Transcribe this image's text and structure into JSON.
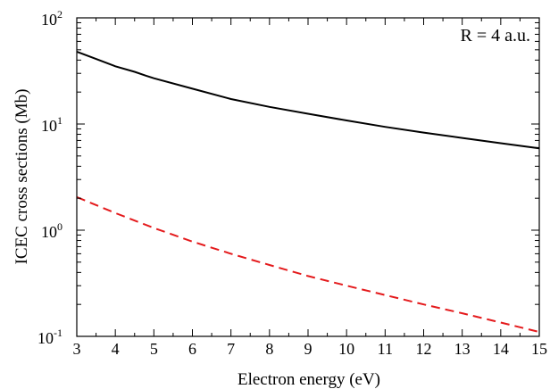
{
  "chart_data": {
    "type": "line",
    "xlabel": "Electron energy (eV)",
    "ylabel": "ICEC cross sections (Mb)",
    "xlim": [
      3,
      15
    ],
    "ylim": [
      0.1,
      100
    ],
    "yscale": "log",
    "grid": false,
    "x_ticks": [
      "3",
      "4",
      "5",
      "6",
      "7",
      "8",
      "9",
      "10",
      "11",
      "12",
      "13",
      "14",
      "15"
    ],
    "y_ticks": [
      {
        "base": "10",
        "exp": "-1"
      },
      {
        "base": "10",
        "exp": "0"
      },
      {
        "base": "10",
        "exp": "1"
      },
      {
        "base": "10",
        "exp": "2"
      }
    ],
    "annotation": "R = 4 a.u.",
    "series": [
      {
        "style": "solid",
        "color": "#000000",
        "x": [
          3,
          3.5,
          4,
          4.5,
          4.8,
          5,
          6,
          7,
          8,
          9,
          10,
          11,
          12,
          13,
          14,
          15
        ],
        "y": [
          48,
          41,
          35,
          31,
          28.5,
          27,
          21.5,
          17.2,
          14.5,
          12.5,
          10.8,
          9.4,
          8.3,
          7.4,
          6.6,
          5.9
        ]
      },
      {
        "style": "dashed",
        "color": "#e41a1c",
        "x": [
          3,
          4,
          5,
          6,
          7,
          8,
          9,
          10,
          11,
          12,
          13,
          14,
          15
        ],
        "y": [
          2.05,
          1.45,
          1.05,
          0.78,
          0.6,
          0.47,
          0.37,
          0.3,
          0.245,
          0.2,
          0.165,
          0.135,
          0.11
        ]
      }
    ]
  }
}
